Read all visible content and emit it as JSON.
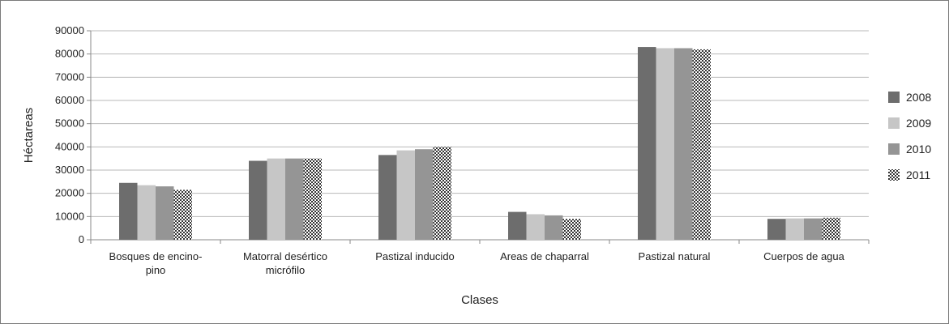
{
  "chart_data": {
    "type": "bar",
    "title": "",
    "xlabel": "Clases",
    "ylabel": "Héctareas",
    "ylim": [
      0,
      90000
    ],
    "yticks": [
      0,
      10000,
      20000,
      30000,
      40000,
      50000,
      60000,
      70000,
      80000,
      90000
    ],
    "grid": true,
    "legend_position": "right",
    "categories": [
      [
        "Bosques de encino-",
        "pino"
      ],
      [
        "Matorral desértico",
        "micrófilo"
      ],
      [
        "Pastizal inducido"
      ],
      [
        "Areas de chaparral"
      ],
      [
        "Pastizal natural"
      ],
      [
        "Cuerpos de agua"
      ]
    ],
    "series": [
      {
        "name": "2008",
        "color": "#6d6d6d",
        "pattern": "solid",
        "values": [
          24500,
          34000,
          36500,
          12000,
          83000,
          9000
        ]
      },
      {
        "name": "2009",
        "color": "#c6c6c6",
        "pattern": "solid",
        "values": [
          23500,
          35000,
          38500,
          11000,
          82500,
          9200
        ]
      },
      {
        "name": "2010",
        "color": "#959595",
        "pattern": "solid",
        "values": [
          23000,
          35000,
          39000,
          10500,
          82500,
          9200
        ]
      },
      {
        "name": "2011",
        "color": "#333333",
        "pattern": "checker",
        "values": [
          21500,
          35000,
          40000,
          9000,
          82000,
          9500
        ]
      }
    ]
  }
}
